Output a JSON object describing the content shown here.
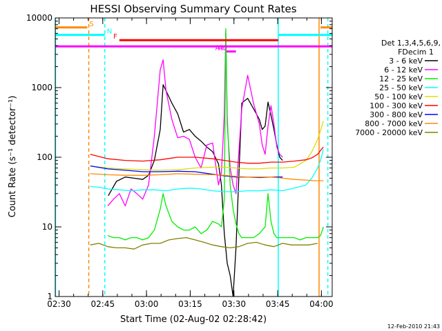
{
  "chart_data": {
    "type": "line",
    "title": "HESSI Observing Summary Count Rates",
    "xlabel": "Start Time (02-Aug-02 02:28:42)",
    "ylabel": "Count Rate (s⁻¹ detector⁻¹)",
    "x_unit": "minutes after 02:28:42 UT",
    "xlim": [
      0,
      95
    ],
    "ylim": [
      1,
      10000
    ],
    "yscale": "log",
    "x_ticks": [
      {
        "label": "02:30",
        "t": 1.3
      },
      {
        "label": "02:45",
        "t": 16.3
      },
      {
        "label": "03:00",
        "t": 31.3
      },
      {
        "label": "03:15",
        "t": 46.3
      },
      {
        "label": "03:30",
        "t": 61.3
      },
      {
        "label": "03:45",
        "t": 76.3
      },
      {
        "label": "04:00",
        "t": 91.3
      }
    ],
    "y_ticks": [
      {
        "label": "1",
        "v": 1
      },
      {
        "label": "10",
        "v": 10
      },
      {
        "label": "100",
        "v": 100
      },
      {
        "label": "1000",
        "v": 1000
      },
      {
        "label": "10000",
        "v": 10000
      }
    ],
    "legend": {
      "title_lines": [
        "Det 1,3,4,5,6,9,",
        "FDecim 1"
      ],
      "position": "right"
    },
    "series": [
      {
        "name": "3 - 6 keV",
        "color": "#000000",
        "x": [
          18.2,
          21,
          24,
          27,
          30,
          32,
          34,
          36,
          37,
          38,
          40,
          42,
          44,
          46,
          48,
          50,
          52,
          54,
          56,
          57,
          58,
          59,
          60,
          61,
          62,
          64,
          66,
          68,
          70,
          71,
          72,
          73,
          74,
          75,
          76,
          77,
          78
        ],
        "y": [
          28,
          45,
          52,
          50,
          48,
          55,
          90,
          250,
          1100,
          900,
          600,
          420,
          230,
          250,
          200,
          170,
          140,
          120,
          80,
          40,
          8,
          3,
          2,
          1,
          5,
          600,
          700,
          500,
          350,
          250,
          280,
          620,
          400,
          250,
          150,
          100,
          90
        ]
      },
      {
        "name": "6 - 12 keV",
        "color": "#ff00ff",
        "x": [
          18,
          20,
          22,
          24,
          26,
          28,
          30,
          32,
          34,
          36,
          37,
          38,
          40,
          42,
          44,
          46,
          48,
          50,
          52,
          54,
          56,
          57,
          58,
          58.5,
          59,
          60,
          61,
          62,
          64,
          66,
          68,
          70,
          71,
          72,
          73,
          74,
          75,
          76,
          77,
          78
        ],
        "y": [
          20,
          25,
          30,
          20,
          35,
          30,
          25,
          40,
          200,
          1800,
          2500,
          900,
          350,
          190,
          200,
          180,
          100,
          70,
          150,
          160,
          40,
          60,
          400,
          6500,
          300,
          70,
          40,
          30,
          500,
          1500,
          600,
          300,
          150,
          110,
          280,
          550,
          300,
          140,
          110,
          100
        ]
      },
      {
        "name": "12 - 25 keV",
        "color": "#00ee00",
        "x": [
          18,
          20,
          22,
          24,
          26,
          28,
          30,
          32,
          34,
          36,
          37,
          38,
          40,
          42,
          44,
          46,
          48,
          50,
          52,
          54,
          56,
          57,
          58,
          58.5,
          59,
          60,
          61,
          62,
          63,
          64,
          66,
          68,
          70,
          71,
          72,
          73,
          74,
          75,
          76,
          77,
          78,
          80,
          82,
          84,
          86,
          88,
          90,
          91,
          92
        ],
        "y": [
          7.5,
          7,
          7,
          6.5,
          7,
          7,
          6.5,
          7,
          9,
          18,
          30,
          20,
          12,
          10,
          9,
          9,
          10,
          8,
          9,
          12,
          11,
          10,
          25,
          7000,
          400,
          40,
          18,
          11,
          8,
          7,
          7,
          7,
          8,
          9,
          10,
          30,
          12,
          8,
          7,
          7,
          7,
          7,
          7,
          6.5,
          7,
          7,
          7,
          7.5,
          10
        ]
      },
      {
        "name": "25 - 50 keV",
        "color": "#00ffff",
        "x": [
          12,
          15,
          18,
          22,
          26,
          30,
          34,
          38,
          42,
          46,
          50,
          54,
          58,
          62,
          66,
          70,
          74,
          78,
          82,
          86,
          88,
          90,
          91,
          92
        ],
        "y": [
          38,
          37,
          35,
          34,
          33,
          34,
          34,
          33,
          35,
          36,
          35,
          33,
          32,
          32,
          33,
          33,
          34,
          33,
          36,
          40,
          50,
          70,
          90,
          130
        ]
      },
      {
        "name": "50 - 100 keV",
        "color": "#dddd00",
        "x": [
          12,
          18,
          24,
          30,
          36,
          42,
          48,
          54,
          58,
          62,
          66,
          70,
          74,
          78,
          82,
          86,
          88,
          90,
          91,
          92
        ],
        "y": [
          75,
          70,
          68,
          66,
          65,
          66,
          70,
          72,
          72,
          70,
          68,
          68,
          70,
          70,
          72,
          90,
          120,
          180,
          240,
          330
        ]
      },
      {
        "name": "100 - 300 keV",
        "color": "#ff0000",
        "x": [
          12,
          18,
          24,
          30,
          36,
          42,
          48,
          54,
          58,
          62,
          66,
          70,
          74,
          78,
          82,
          86,
          88,
          90,
          91,
          92
        ],
        "y": [
          110,
          95,
          90,
          88,
          92,
          100,
          100,
          95,
          90,
          85,
          82,
          82,
          85,
          85,
          88,
          92,
          98,
          110,
          125,
          140
        ]
      },
      {
        "name": "300 - 800 keV",
        "color": "#0000ff",
        "x": [
          12,
          18,
          24,
          30,
          36,
          42,
          48,
          54,
          58,
          62,
          66,
          70,
          74,
          78
        ],
        "y": [
          75,
          68,
          65,
          62,
          62,
          63,
          62,
          57,
          54,
          52,
          52,
          51,
          52,
          52
        ]
      },
      {
        "name": "800 - 7000 keV",
        "color": "#ff8800",
        "x": [
          12,
          18,
          24,
          30,
          36,
          42,
          48,
          54,
          58,
          62,
          66,
          70,
          74,
          78,
          82,
          86,
          89,
          92
        ],
        "y": [
          58,
          56,
          55,
          55,
          56,
          58,
          57,
          56,
          55,
          53,
          52,
          52,
          52,
          50,
          48,
          47,
          46,
          46
        ]
      },
      {
        "name": "7000 - 20000 keV",
        "color": "#808000",
        "x": [
          12,
          15,
          18,
          21,
          24,
          27,
          30,
          33,
          36,
          39,
          42,
          45,
          48,
          51,
          54,
          57,
          60,
          63,
          66,
          69,
          72,
          75,
          78,
          81,
          84,
          87,
          90
        ],
        "y": [
          5.5,
          5.8,
          5.2,
          5.0,
          5.0,
          4.8,
          5.5,
          5.8,
          5.8,
          6.5,
          6.8,
          7.0,
          6.5,
          6.0,
          5.5,
          5.2,
          5.0,
          5.2,
          5.8,
          6.0,
          5.5,
          5.2,
          5.8,
          5.5,
          5.5,
          5.5,
          5.8
        ]
      }
    ],
    "annotations": [
      {
        "label": "S",
        "color": "#ff8800",
        "segments": [
          [
            0,
            11
          ],
          [
            91,
            95
          ]
        ],
        "level": 7300
      },
      {
        "label": "N",
        "color": "#00ffff",
        "segments": [
          [
            0,
            17
          ],
          [
            76.5,
            95
          ]
        ],
        "level": 5700
      },
      {
        "label": "F",
        "color": "#ff0000",
        "segments": [
          [
            22,
            76.5
          ]
        ],
        "level": 4800
      },
      {
        "label": "",
        "color": "#ff00ff",
        "segments": [
          [
            0,
            95
          ]
        ],
        "level": 3900
      },
      {
        "label": "A1",
        "color": "#ff00ff",
        "segments": [
          [
            58.7,
            59.7
          ]
        ],
        "level": 3300
      },
      {
        "label": "A0",
        "color": "#ff00ff",
        "segments": [
          [
            59.7,
            62
          ]
        ],
        "level": 3300
      }
    ],
    "vertical_markers": [
      {
        "t": 0.1,
        "color": "#00ffff",
        "style": "solid"
      },
      {
        "t": 11.5,
        "color": "#ff8800",
        "style": "dashed"
      },
      {
        "t": 17,
        "color": "#00ffff",
        "style": "dashed"
      },
      {
        "t": 76.5,
        "color": "#00ffff",
        "style": "solid"
      },
      {
        "t": 90.5,
        "color": "#ff8800",
        "style": "solid"
      },
      {
        "t": 93.5,
        "color": "#00ffff",
        "style": "dashed"
      }
    ]
  },
  "footer": {
    "timestamp": "12-Feb-2010 21:43"
  }
}
